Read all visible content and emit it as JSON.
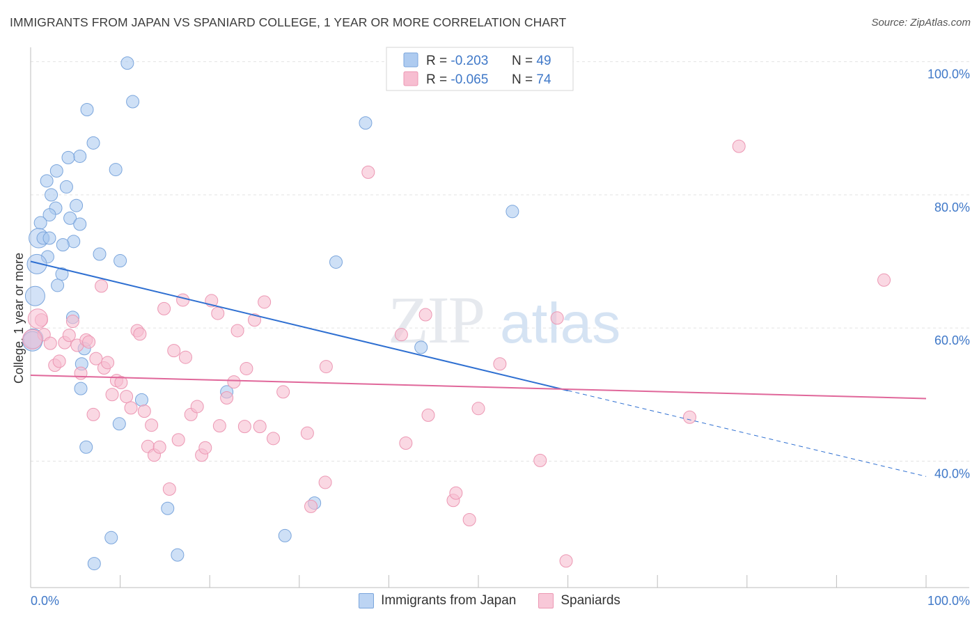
{
  "title": "IMMIGRANTS FROM JAPAN VS SPANIARD COLLEGE, 1 YEAR OR MORE CORRELATION CHART",
  "source": "Source: ZipAtlas.com",
  "watermark": {
    "zip": "ZIP",
    "atlas": "atlas"
  },
  "chart_data": {
    "type": "scatter",
    "xlabel": "",
    "ylabel": "College, 1 year or more",
    "xlim": [
      0,
      100
    ],
    "ylim": [
      21,
      103
    ],
    "x_tick_labels": {
      "min": "0.0%",
      "max": "100.0%"
    },
    "y_ticks": [
      {
        "value": 40,
        "label": "40.0%"
      },
      {
        "value": 60,
        "label": "60.0%"
      },
      {
        "value": 80,
        "label": "80.0%"
      },
      {
        "value": 100,
        "label": "100.0%"
      }
    ],
    "legend_stats": [
      {
        "r_label": "R =",
        "r_value": "-0.203",
        "n_label": "N =",
        "n_value": "49"
      },
      {
        "r_label": "R =",
        "r_value": "-0.065",
        "n_label": "N =",
        "n_value": "74"
      }
    ],
    "series": [
      {
        "name": "Immigrants from Japan",
        "fill": "#aecbf0",
        "stroke": "#7aa5dc",
        "line_color": "#2e6fd1",
        "trend": {
          "x0": 0,
          "y0": 70.0,
          "x1": 60,
          "y1": 50.6,
          "x_end": 100,
          "y_end": 37.7
        },
        "points": [
          [
            10.8,
            99.8
          ],
          [
            11.4,
            94.0
          ],
          [
            6.3,
            92.8
          ],
          [
            7.0,
            87.8
          ],
          [
            5.5,
            85.8
          ],
          [
            4.2,
            85.6
          ],
          [
            9.5,
            83.8
          ],
          [
            2.9,
            83.6
          ],
          [
            1.8,
            82.1
          ],
          [
            4.0,
            81.2
          ],
          [
            2.3,
            80.0
          ],
          [
            5.1,
            78.4
          ],
          [
            2.8,
            78.0
          ],
          [
            2.1,
            77.0
          ],
          [
            4.4,
            76.5
          ],
          [
            1.1,
            75.8
          ],
          [
            5.5,
            75.6
          ],
          [
            0.9,
            73.5
          ],
          [
            1.4,
            73.5
          ],
          [
            2.1,
            73.5
          ],
          [
            4.8,
            73.0
          ],
          [
            3.6,
            72.5
          ],
          [
            7.7,
            71.1
          ],
          [
            1.9,
            70.7
          ],
          [
            10.0,
            70.1
          ],
          [
            0.7,
            69.6
          ],
          [
            3.5,
            68.1
          ],
          [
            3.0,
            66.4
          ],
          [
            0.5,
            64.8
          ],
          [
            4.7,
            61.6
          ],
          [
            0.3,
            58.4
          ],
          [
            6.0,
            56.9
          ],
          [
            5.7,
            54.6
          ],
          [
            5.6,
            50.9
          ],
          [
            12.4,
            49.2
          ],
          [
            21.9,
            50.4
          ],
          [
            9.9,
            45.6
          ],
          [
            6.2,
            42.1
          ],
          [
            15.3,
            32.9
          ],
          [
            9.0,
            28.5
          ],
          [
            7.1,
            24.6
          ],
          [
            16.4,
            25.9
          ],
          [
            28.4,
            28.8
          ],
          [
            31.7,
            33.7
          ],
          [
            34.1,
            69.9
          ],
          [
            37.4,
            90.8
          ],
          [
            53.8,
            77.5
          ],
          [
            43.6,
            57.1
          ],
          [
            0.2,
            58.0
          ]
        ]
      },
      {
        "name": "Spaniards",
        "fill": "#f7bed1",
        "stroke": "#ec97b3",
        "line_color": "#e0679a",
        "trend": {
          "x0": 0,
          "y0": 52.9,
          "x1": 100,
          "y1": 49.4
        },
        "points": [
          [
            1.2,
            61.2
          ],
          [
            1.5,
            59.0
          ],
          [
            2.2,
            57.7
          ],
          [
            2.7,
            54.4
          ],
          [
            3.2,
            55.0
          ],
          [
            3.8,
            57.8
          ],
          [
            4.3,
            58.9
          ],
          [
            4.7,
            61.0
          ],
          [
            5.2,
            57.4
          ],
          [
            5.6,
            53.2
          ],
          [
            6.2,
            58.2
          ],
          [
            6.5,
            57.9
          ],
          [
            7.0,
            47.0
          ],
          [
            7.3,
            55.4
          ],
          [
            7.9,
            66.3
          ],
          [
            8.2,
            54.0
          ],
          [
            8.6,
            54.8
          ],
          [
            9.1,
            50.0
          ],
          [
            9.6,
            52.1
          ],
          [
            10.1,
            51.8
          ],
          [
            10.7,
            49.7
          ],
          [
            11.2,
            48.0
          ],
          [
            11.9,
            59.6
          ],
          [
            12.2,
            59.1
          ],
          [
            12.7,
            47.5
          ],
          [
            13.1,
            42.2
          ],
          [
            13.5,
            45.4
          ],
          [
            13.8,
            40.9
          ],
          [
            14.4,
            42.1
          ],
          [
            14.9,
            62.9
          ],
          [
            15.5,
            35.8
          ],
          [
            16.0,
            56.6
          ],
          [
            16.5,
            43.2
          ],
          [
            17.0,
            64.2
          ],
          [
            17.3,
            55.6
          ],
          [
            17.9,
            47.0
          ],
          [
            18.6,
            48.2
          ],
          [
            19.1,
            40.9
          ],
          [
            19.5,
            42.0
          ],
          [
            20.2,
            64.1
          ],
          [
            20.9,
            62.2
          ],
          [
            21.1,
            45.3
          ],
          [
            21.9,
            49.5
          ],
          [
            22.7,
            51.9
          ],
          [
            23.1,
            59.6
          ],
          [
            23.9,
            45.2
          ],
          [
            24.1,
            53.9
          ],
          [
            25.0,
            61.2
          ],
          [
            25.6,
            45.2
          ],
          [
            26.1,
            63.9
          ],
          [
            27.1,
            43.4
          ],
          [
            28.2,
            50.4
          ],
          [
            30.9,
            44.2
          ],
          [
            31.3,
            33.2
          ],
          [
            32.9,
            36.8
          ],
          [
            33.0,
            54.2
          ],
          [
            37.7,
            83.4
          ],
          [
            41.4,
            59.0
          ],
          [
            41.9,
            42.7
          ],
          [
            44.1,
            62.0
          ],
          [
            44.4,
            46.9
          ],
          [
            47.2,
            34.1
          ],
          [
            47.5,
            35.2
          ],
          [
            49.0,
            31.2
          ],
          [
            50.0,
            47.9
          ],
          [
            52.4,
            54.6
          ],
          [
            56.9,
            40.1
          ],
          [
            58.8,
            61.5
          ],
          [
            59.8,
            25.0
          ],
          [
            73.6,
            46.6
          ],
          [
            79.1,
            87.3
          ],
          [
            95.3,
            67.2
          ],
          [
            0.2,
            58.3
          ],
          [
            0.8,
            61.4
          ]
        ]
      }
    ]
  }
}
